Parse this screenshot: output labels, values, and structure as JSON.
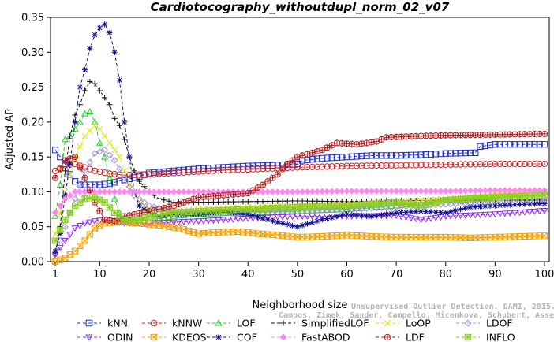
{
  "chart_data": {
    "type": "line",
    "title": "Cardiotocography_withoutdupl_norm_02_v07",
    "xlabel": "Neighborhood size",
    "ylabel": "Adjusted AP",
    "xlim": [
      1,
      100
    ],
    "ylim": [
      0,
      0.35
    ],
    "x_ticks": [
      1,
      10,
      20,
      30,
      40,
      50,
      60,
      70,
      80,
      90,
      100
    ],
    "y_ticks": [
      0.0,
      0.05,
      0.1,
      0.15,
      0.2,
      0.25,
      0.3,
      0.35
    ],
    "grid": false,
    "legend_position": "bottom",
    "series": [
      {
        "name": "kNN",
        "color": "#1f2fcc",
        "marker": "square",
        "points": [
          [
            1,
            0.16
          ],
          [
            2,
            0.15
          ],
          [
            3,
            0.14
          ],
          [
            4,
            0.125
          ],
          [
            5,
            0.115
          ],
          [
            6,
            0.11
          ],
          [
            8,
            0.11
          ],
          [
            10,
            0.11
          ],
          [
            12,
            0.112
          ],
          [
            15,
            0.117
          ],
          [
            18,
            0.122
          ],
          [
            20,
            0.127
          ],
          [
            25,
            0.13
          ],
          [
            30,
            0.133
          ],
          [
            35,
            0.135
          ],
          [
            40,
            0.137
          ],
          [
            45,
            0.138
          ],
          [
            50,
            0.14
          ],
          [
            51,
            0.145
          ],
          [
            55,
            0.148
          ],
          [
            60,
            0.15
          ],
          [
            65,
            0.152
          ],
          [
            70,
            0.152
          ],
          [
            75,
            0.153
          ],
          [
            80,
            0.155
          ],
          [
            86,
            0.156
          ],
          [
            87,
            0.165
          ],
          [
            90,
            0.168
          ],
          [
            95,
            0.168
          ],
          [
            100,
            0.168
          ]
        ]
      },
      {
        "name": "kNNW",
        "color": "#d42020",
        "marker": "circle",
        "points": [
          [
            1,
            0.13
          ],
          [
            3,
            0.138
          ],
          [
            5,
            0.14
          ],
          [
            7,
            0.135
          ],
          [
            9,
            0.13
          ],
          [
            12,
            0.126
          ],
          [
            15,
            0.124
          ],
          [
            20,
            0.125
          ],
          [
            25,
            0.127
          ],
          [
            30,
            0.129
          ],
          [
            35,
            0.131
          ],
          [
            40,
            0.132
          ],
          [
            50,
            0.135
          ],
          [
            60,
            0.137
          ],
          [
            70,
            0.138
          ],
          [
            80,
            0.139
          ],
          [
            90,
            0.14
          ],
          [
            100,
            0.14
          ]
        ]
      },
      {
        "name": "LOF",
        "color": "#22cc22",
        "marker": "triangle-up",
        "points": [
          [
            1,
            0.065
          ],
          [
            2,
            0.11
          ],
          [
            3,
            0.175
          ],
          [
            4,
            0.18
          ],
          [
            5,
            0.19
          ],
          [
            6,
            0.2
          ],
          [
            7,
            0.212
          ],
          [
            8,
            0.215
          ],
          [
            9,
            0.2
          ],
          [
            10,
            0.17
          ],
          [
            11,
            0.15
          ],
          [
            12,
            0.12
          ],
          [
            13,
            0.09
          ],
          [
            14,
            0.07
          ],
          [
            15,
            0.06
          ],
          [
            20,
            0.058
          ],
          [
            25,
            0.065
          ],
          [
            30,
            0.068
          ],
          [
            40,
            0.07
          ],
          [
            50,
            0.072
          ],
          [
            60,
            0.075
          ],
          [
            70,
            0.08
          ],
          [
            80,
            0.088
          ],
          [
            90,
            0.095
          ],
          [
            100,
            0.1
          ]
        ]
      },
      {
        "name": "SimplifiedLOF",
        "color": "#111111",
        "marker": "plus",
        "points": [
          [
            1,
            0.012
          ],
          [
            2,
            0.05
          ],
          [
            3,
            0.13
          ],
          [
            4,
            0.18
          ],
          [
            5,
            0.21
          ],
          [
            6,
            0.225
          ],
          [
            7,
            0.245
          ],
          [
            8,
            0.258
          ],
          [
            9,
            0.255
          ],
          [
            10,
            0.245
          ],
          [
            11,
            0.235
          ],
          [
            12,
            0.225
          ],
          [
            13,
            0.205
          ],
          [
            14,
            0.195
          ],
          [
            15,
            0.175
          ],
          [
            16,
            0.15
          ],
          [
            17,
            0.13
          ],
          [
            18,
            0.115
          ],
          [
            20,
            0.1
          ],
          [
            22,
            0.09
          ],
          [
            25,
            0.085
          ],
          [
            30,
            0.085
          ],
          [
            40,
            0.086
          ],
          [
            50,
            0.087
          ],
          [
            60,
            0.086
          ],
          [
            70,
            0.087
          ],
          [
            80,
            0.088
          ],
          [
            90,
            0.088
          ],
          [
            100,
            0.088
          ]
        ]
      },
      {
        "name": "LoOP",
        "color": "#e0e000",
        "marker": "cross",
        "points": [
          [
            1,
            0.04
          ],
          [
            3,
            0.1
          ],
          [
            5,
            0.15
          ],
          [
            7,
            0.18
          ],
          [
            9,
            0.195
          ],
          [
            10,
            0.19
          ],
          [
            12,
            0.17
          ],
          [
            14,
            0.15
          ],
          [
            16,
            0.11
          ],
          [
            18,
            0.085
          ],
          [
            20,
            0.075
          ],
          [
            25,
            0.072
          ],
          [
            30,
            0.075
          ],
          [
            40,
            0.078
          ],
          [
            50,
            0.08
          ],
          [
            60,
            0.083
          ],
          [
            70,
            0.085
          ],
          [
            80,
            0.09
          ],
          [
            90,
            0.095
          ],
          [
            100,
            0.098
          ]
        ]
      },
      {
        "name": "LDOF",
        "color": "#a090e0",
        "marker": "diamond",
        "points": [
          [
            1,
            0.01
          ],
          [
            3,
            0.05
          ],
          [
            5,
            0.09
          ],
          [
            7,
            0.13
          ],
          [
            9,
            0.155
          ],
          [
            11,
            0.16
          ],
          [
            13,
            0.145
          ],
          [
            15,
            0.12
          ],
          [
            17,
            0.095
          ],
          [
            20,
            0.08
          ],
          [
            25,
            0.072
          ],
          [
            30,
            0.07
          ],
          [
            40,
            0.07
          ],
          [
            50,
            0.072
          ],
          [
            60,
            0.075
          ],
          [
            70,
            0.078
          ],
          [
            80,
            0.082
          ],
          [
            90,
            0.085
          ],
          [
            100,
            0.088
          ]
        ]
      },
      {
        "name": "ODIN",
        "color": "#8a2be2",
        "marker": "triangle-down",
        "points": [
          [
            1,
            0.01
          ],
          [
            3,
            0.03
          ],
          [
            5,
            0.048
          ],
          [
            7,
            0.055
          ],
          [
            9,
            0.058
          ],
          [
            11,
            0.06
          ],
          [
            13,
            0.058
          ],
          [
            15,
            0.055
          ],
          [
            20,
            0.055
          ],
          [
            30,
            0.058
          ],
          [
            40,
            0.062
          ],
          [
            50,
            0.065
          ],
          [
            60,
            0.065
          ],
          [
            70,
            0.066
          ],
          [
            75,
            0.06
          ],
          [
            80,
            0.065
          ],
          [
            90,
            0.068
          ],
          [
            100,
            0.073
          ]
        ]
      },
      {
        "name": "KDEOS",
        "color": "#f0a000",
        "marker": "box-x",
        "points": [
          [
            1,
            0.0
          ],
          [
            3,
            0.005
          ],
          [
            5,
            0.015
          ],
          [
            7,
            0.03
          ],
          [
            9,
            0.048
          ],
          [
            11,
            0.055
          ],
          [
            14,
            0.057
          ],
          [
            18,
            0.055
          ],
          [
            22,
            0.052
          ],
          [
            26,
            0.048
          ],
          [
            30,
            0.04
          ],
          [
            34,
            0.042
          ],
          [
            38,
            0.043
          ],
          [
            42,
            0.04
          ],
          [
            46,
            0.038
          ],
          [
            50,
            0.035
          ],
          [
            55,
            0.036
          ],
          [
            60,
            0.038
          ],
          [
            65,
            0.036
          ],
          [
            70,
            0.035
          ],
          [
            75,
            0.035
          ],
          [
            80,
            0.035
          ],
          [
            85,
            0.034
          ],
          [
            90,
            0.035
          ],
          [
            95,
            0.036
          ],
          [
            100,
            0.037
          ]
        ]
      },
      {
        "name": "COF",
        "color": "#10108a",
        "marker": "star",
        "points": [
          [
            1,
            0.015
          ],
          [
            2,
            0.04
          ],
          [
            3,
            0.095
          ],
          [
            4,
            0.14
          ],
          [
            5,
            0.2
          ],
          [
            6,
            0.25
          ],
          [
            7,
            0.275
          ],
          [
            8,
            0.305
          ],
          [
            9,
            0.325
          ],
          [
            10,
            0.335
          ],
          [
            11,
            0.34
          ],
          [
            12,
            0.328
          ],
          [
            13,
            0.3
          ],
          [
            14,
            0.26
          ],
          [
            15,
            0.2
          ],
          [
            16,
            0.15
          ],
          [
            17,
            0.1
          ],
          [
            18,
            0.08
          ],
          [
            20,
            0.07
          ],
          [
            22,
            0.065
          ],
          [
            25,
            0.068
          ],
          [
            30,
            0.068
          ],
          [
            35,
            0.072
          ],
          [
            40,
            0.068
          ],
          [
            45,
            0.058
          ],
          [
            50,
            0.05
          ],
          [
            55,
            0.06
          ],
          [
            60,
            0.068
          ],
          [
            65,
            0.065
          ],
          [
            70,
            0.07
          ],
          [
            75,
            0.072
          ],
          [
            80,
            0.07
          ],
          [
            85,
            0.078
          ],
          [
            90,
            0.08
          ],
          [
            95,
            0.082
          ],
          [
            100,
            0.083
          ]
        ]
      },
      {
        "name": "FastABOD",
        "color": "#ff88ee",
        "marker": "diamond-filled",
        "points": [
          [
            1,
            0.07
          ],
          [
            3,
            0.09
          ],
          [
            5,
            0.1
          ],
          [
            7,
            0.1
          ],
          [
            10,
            0.1
          ],
          [
            20,
            0.1
          ],
          [
            30,
            0.1
          ],
          [
            40,
            0.1
          ],
          [
            50,
            0.1
          ],
          [
            60,
            0.101
          ],
          [
            70,
            0.101
          ],
          [
            80,
            0.101
          ],
          [
            90,
            0.102
          ],
          [
            100,
            0.102
          ]
        ]
      },
      {
        "name": "LDF",
        "color": "#b02020",
        "marker": "circle-plus",
        "points": [
          [
            1,
            0.12
          ],
          [
            3,
            0.145
          ],
          [
            5,
            0.15
          ],
          [
            7,
            0.12
          ],
          [
            9,
            0.085
          ],
          [
            11,
            0.06
          ],
          [
            13,
            0.058
          ],
          [
            15,
            0.065
          ],
          [
            20,
            0.072
          ],
          [
            25,
            0.08
          ],
          [
            30,
            0.092
          ],
          [
            35,
            0.095
          ],
          [
            40,
            0.098
          ],
          [
            43,
            0.11
          ],
          [
            46,
            0.125
          ],
          [
            48,
            0.14
          ],
          [
            50,
            0.15
          ],
          [
            55,
            0.16
          ],
          [
            58,
            0.17
          ],
          [
            62,
            0.168
          ],
          [
            66,
            0.172
          ],
          [
            68,
            0.178
          ],
          [
            75,
            0.18
          ],
          [
            80,
            0.181
          ],
          [
            90,
            0.182
          ],
          [
            100,
            0.183
          ]
        ]
      },
      {
        "name": "INFLO",
        "color": "#88cc22",
        "marker": "box-star",
        "points": [
          [
            1,
            0.03
          ],
          [
            3,
            0.06
          ],
          [
            5,
            0.08
          ],
          [
            7,
            0.09
          ],
          [
            9,
            0.092
          ],
          [
            11,
            0.085
          ],
          [
            13,
            0.07
          ],
          [
            15,
            0.06
          ],
          [
            18,
            0.06
          ],
          [
            20,
            0.065
          ],
          [
            25,
            0.07
          ],
          [
            30,
            0.072
          ],
          [
            40,
            0.075
          ],
          [
            50,
            0.078
          ],
          [
            60,
            0.08
          ],
          [
            70,
            0.085
          ],
          [
            75,
            0.08
          ],
          [
            80,
            0.088
          ],
          [
            90,
            0.092
          ],
          [
            100,
            0.095
          ]
        ]
      }
    ]
  },
  "watermark": {
    "line1": "Unsupervised Outlier Detection. DAMI, 2015.",
    "line2": "Campos, Zimek, Sander, Campello, Micenkova, Schubert, Assent, Houle"
  }
}
